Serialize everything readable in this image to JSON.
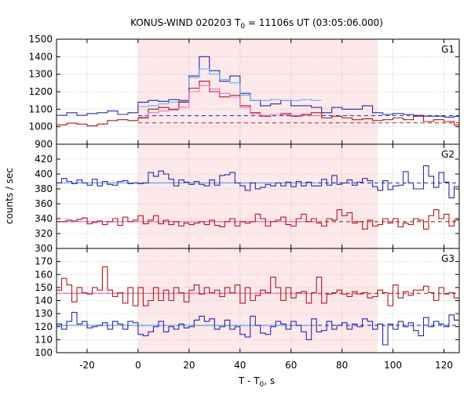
{
  "chart_data": {
    "type": "line",
    "title_text": "KONUS-WIND 020203 T",
    "title_sub": "0",
    "title_rest": " = 11106s UT (03:05:06.000)",
    "xlabel_main": "T - T",
    "xlabel_sub": "0",
    "xlabel_rest": ", s",
    "ylabel": "counts / sec",
    "xlim": [
      -32,
      126
    ],
    "x_ticks": [
      -20,
      0,
      20,
      40,
      60,
      80,
      100,
      120
    ],
    "x_tick_labels": [
      "-20",
      "0",
      "20",
      "40",
      "60",
      "80",
      "100",
      "120"
    ],
    "shaded_interval": [
      0,
      94
    ],
    "colors": {
      "shade": "#fde8ea",
      "red": "#b01818",
      "blue": "#2828a8",
      "light_blue": "#58b8f0",
      "pink": "#f070c8",
      "fit_blue": "#58a8e8",
      "dash_blue": "#2040c0",
      "dash_red": "#b02020"
    },
    "panels": [
      {
        "label": "G1",
        "ylim": [
          900,
          1500
        ],
        "y_ticks": [
          900,
          1000,
          1100,
          1200,
          1300,
          1400,
          1500
        ],
        "y_tick_labels": [
          "900",
          "1000",
          "1100",
          "1200",
          "1300",
          "1400",
          "1500"
        ],
        "background": {
          "blue_level": 1063,
          "red_level": 1022
        },
        "series": [
          {
            "color": "blue",
            "x": [
              -32,
              -28,
              -24,
              -20,
              -16,
              -12,
              -8,
              -4,
              0,
              4,
              8,
              12,
              16,
              20,
              24,
              28,
              32,
              36,
              40,
              44,
              48,
              52,
              56,
              60,
              64,
              68,
              72,
              76,
              80,
              84,
              88,
              92,
              96,
              100,
              104,
              108,
              112,
              116,
              120,
              124
            ],
            "y": [
              1065,
              1080,
              1065,
              1075,
              1080,
              1090,
              1070,
              1080,
              1140,
              1150,
              1145,
              1155,
              1150,
              1290,
              1400,
              1320,
              1260,
              1290,
              1190,
              1150,
              1120,
              1130,
              1150,
              1120,
              1120,
              1110,
              1080,
              1110,
              1100,
              1100,
              1120,
              1080,
              1070,
              1075,
              1070,
              1065,
              1060,
              1060,
              1055,
              1060
            ]
          },
          {
            "color": "light_blue",
            "x": [
              0,
              4,
              8,
              12,
              16,
              20,
              24,
              28,
              32,
              36,
              40,
              44,
              48,
              52,
              56,
              60,
              64,
              68
            ],
            "y": [
              1115,
              1120,
              1130,
              1140,
              1145,
              1280,
              1330,
              1300,
              1270,
              1250,
              1180,
              1150,
              1150,
              1155,
              1150,
              1150,
              1155,
              1150
            ]
          },
          {
            "color": "red",
            "x": [
              -32,
              -28,
              -24,
              -20,
              -16,
              -12,
              -8,
              -4,
              0,
              4,
              8,
              12,
              16,
              20,
              24,
              28,
              32,
              36,
              40,
              44,
              48,
              52,
              56,
              60,
              64,
              68,
              72,
              76,
              80,
              84,
              88,
              92,
              96,
              100,
              104,
              108,
              112,
              116,
              120,
              124
            ],
            "y": [
              1010,
              1020,
              1015,
              1005,
              1015,
              1035,
              1040,
              1035,
              1050,
              1100,
              1110,
              1100,
              1140,
              1220,
              1260,
              1200,
              1170,
              1180,
              1120,
              1080,
              1060,
              1070,
              1075,
              1060,
              1070,
              1080,
              1050,
              1060,
              1050,
              1040,
              1045,
              1035,
              1040,
              1050,
              1040,
              1060,
              1030,
              1040,
              1030,
              1010
            ]
          },
          {
            "color": "pink",
            "x": [
              0,
              4,
              8,
              12,
              16,
              20,
              24,
              28,
              32,
              36,
              40,
              44,
              48,
              52,
              56,
              60,
              64,
              68
            ],
            "y": [
              1055,
              1080,
              1090,
              1095,
              1110,
              1200,
              1235,
              1215,
              1190,
              1170,
              1110,
              1075,
              1065,
              1070,
              1068,
              1065,
              1066,
              1063
            ]
          }
        ]
      },
      {
        "label": "G2",
        "ylim": [
          300,
          440
        ],
        "y_ticks": [
          300,
          320,
          340,
          360,
          380,
          400,
          420
        ],
        "y_tick_labels": [
          "300",
          "320",
          "340",
          "360",
          "380",
          "400",
          "420"
        ],
        "background": {
          "blue_level": 388,
          "red_level": 336
        },
        "series": [
          {
            "color": "blue",
            "x": [
              -32,
              -30,
              -28,
              -26,
              -24,
              -22,
              -20,
              -18,
              -16,
              -14,
              -12,
              -10,
              -8,
              -6,
              -4,
              -2,
              0,
              2,
              4,
              6,
              8,
              10,
              12,
              14,
              16,
              18,
              20,
              22,
              24,
              26,
              28,
              30,
              32,
              34,
              36,
              38,
              40,
              42,
              44,
              46,
              48,
              50,
              52,
              54,
              56,
              58,
              60,
              62,
              64,
              66,
              68,
              70,
              72,
              74,
              76,
              78,
              80,
              82,
              84,
              86,
              88,
              90,
              92,
              94,
              96,
              98,
              100,
              102,
              104,
              106,
              108,
              110,
              112,
              114,
              116,
              118,
              120,
              122,
              124
            ],
            "y": [
              388,
              394,
              390,
              387,
              392,
              388,
              385,
              393,
              384,
              390,
              386,
              385,
              390,
              391,
              387,
              388,
              387,
              388,
              402,
              397,
              404,
              400,
              393,
              384,
              392,
              389,
              386,
              390,
              386,
              384,
              392,
              385,
              398,
              399,
              402,
              388,
              384,
              378,
              388,
              380,
              382,
              386,
              384,
              388,
              384,
              389,
              383,
              390,
              384,
              389,
              384,
              384,
              393,
              385,
              398,
              386,
              388,
              392,
              385,
              389,
              394,
              391,
              383,
              378,
              391,
              379,
              384,
              385,
              403,
              388,
              380,
              380,
              411,
              397,
              382,
              402,
              389,
              368,
              383
            ]
          },
          {
            "color": "red",
            "x": [
              -32,
              -30,
              -28,
              -26,
              -24,
              -22,
              -20,
              -18,
              -16,
              -14,
              -12,
              -10,
              -8,
              -6,
              -4,
              -2,
              0,
              2,
              4,
              6,
              8,
              10,
              12,
              14,
              16,
              18,
              20,
              22,
              24,
              26,
              28,
              30,
              32,
              34,
              36,
              38,
              40,
              42,
              44,
              46,
              48,
              50,
              52,
              54,
              56,
              58,
              60,
              62,
              64,
              66,
              68,
              70,
              72,
              74,
              76,
              78,
              80,
              82,
              84,
              86,
              88,
              90,
              92,
              94,
              96,
              98,
              100,
              102,
              104,
              106,
              108,
              110,
              112,
              114,
              116,
              118,
              120,
              122,
              124
            ],
            "y": [
              336,
              336,
              338,
              337,
              339,
              341,
              333,
              335,
              337,
              332,
              336,
              340,
              331,
              342,
              336,
              338,
              344,
              333,
              338,
              344,
              333,
              338,
              332,
              336,
              330,
              334,
              332,
              334,
              336,
              332,
              338,
              331,
              329,
              336,
              340,
              330,
              336,
              334,
              336,
              346,
              340,
              330,
              336,
              338,
              342,
              332,
              330,
              340,
              346,
              336,
              340,
              334,
              330,
              340,
              338,
              352,
              344,
              348,
              334,
              336,
              326,
              338,
              330,
              332,
              340,
              334,
              340,
              329,
              334,
              332,
              340,
              338,
              326,
              344,
              352,
              340,
              346,
              330,
              338
            ]
          }
        ]
      },
      {
        "label": "G3",
        "ylim": [
          100,
          180
        ],
        "y_ticks": [
          100,
          110,
          120,
          130,
          140,
          150,
          160,
          170
        ],
        "y_tick_labels": [
          "100",
          "110",
          "120",
          "130",
          "140",
          "150",
          "160",
          "170"
        ],
        "background": {
          "blue_level": 121,
          "red_level": 145.5
        },
        "series": [
          {
            "color": "red",
            "x": [
              -32,
              -30,
              -28,
              -26,
              -24,
              -22,
              -20,
              -18,
              -16,
              -14,
              -12,
              -10,
              -8,
              -6,
              -4,
              -2,
              0,
              2,
              4,
              6,
              8,
              10,
              12,
              14,
              16,
              18,
              20,
              22,
              24,
              26,
              28,
              30,
              32,
              34,
              36,
              38,
              40,
              42,
              44,
              46,
              48,
              50,
              52,
              54,
              56,
              58,
              60,
              62,
              64,
              66,
              68,
              70,
              72,
              74,
              76,
              78,
              80,
              82,
              84,
              86,
              88,
              90,
              92,
              94,
              96,
              98,
              100,
              102,
              104,
              106,
              108,
              110,
              112,
              114,
              116,
              118,
              120,
              122,
              124
            ],
            "y": [
              148,
              157,
              152,
              139,
              150,
              146,
              145,
              150,
              148,
              166,
              148,
              143,
              146,
              138,
              150,
              136,
              150,
              136,
              140,
              150,
              140,
              148,
              140,
              150,
              146,
              139,
              148,
              152,
              145,
              150,
              146,
              148,
              143,
              150,
              146,
              152,
              138,
              150,
              140,
              144,
              148,
              146,
              158,
              150,
              140,
              150,
              142,
              146,
              147,
              138,
              146,
              158,
              138,
              145,
              146,
              148,
              145,
              143,
              147,
              145,
              146,
              142,
              143,
              148,
              146,
              136,
              152,
              142,
              147,
              144,
              148,
              148,
              151,
              146,
              140,
              150,
              145,
              146,
              142
            ]
          },
          {
            "color": "blue",
            "x": [
              -32,
              -30,
              -28,
              -26,
              -24,
              -22,
              -20,
              -18,
              -16,
              -14,
              -12,
              -10,
              -8,
              -6,
              -4,
              -2,
              0,
              2,
              4,
              6,
              8,
              10,
              12,
              14,
              16,
              18,
              20,
              22,
              24,
              26,
              28,
              30,
              32,
              34,
              36,
              38,
              40,
              42,
              44,
              46,
              48,
              50,
              52,
              54,
              56,
              58,
              60,
              62,
              64,
              66,
              68,
              70,
              72,
              74,
              76,
              78,
              80,
              82,
              84,
              86,
              88,
              90,
              92,
              94,
              96,
              98,
              100,
              102,
              104,
              106,
              108,
              110,
              112,
              114,
              116,
              118,
              120,
              122,
              124
            ],
            "y": [
              122,
              118,
              124,
              131,
              122,
              124,
              119,
              120,
              121,
              123,
              118,
              124,
              122,
              118,
              124,
              123,
              114,
              113,
              116,
              120,
              124,
              116,
              120,
              118,
              122,
              119,
              120,
              125,
              128,
              124,
              126,
              118,
              120,
              125,
              118,
              120,
              114,
              112,
              128,
              121,
              115,
              114,
              120,
              124,
              122,
              118,
              124,
              121,
              116,
              110,
              126,
              116,
              117,
              124,
              118,
              121,
              123,
              118,
              122,
              120,
              126,
              124,
              118,
              122,
              106,
              122,
              118,
              124,
              120,
              123,
              117,
              113,
              127,
              120,
              124,
              122,
              120,
              129,
              125
            ]
          }
        ]
      }
    ]
  }
}
